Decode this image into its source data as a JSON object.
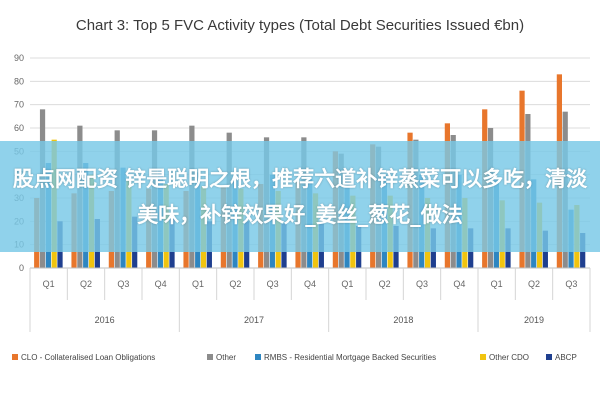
{
  "chart_data": {
    "type": "bar",
    "title": "Chart 3: Top 5 FVC Activity types (Total Debt Securities Issued €bn)",
    "ylim": [
      0,
      90
    ],
    "y_ticks": [
      "0",
      "10",
      "20",
      "30",
      "40",
      "50",
      "60",
      "70",
      "80",
      "90"
    ],
    "categories": [
      "Q1",
      "Q2",
      "Q3",
      "Q4",
      "Q1",
      "Q2",
      "Q3",
      "Q4",
      "Q1",
      "Q2",
      "Q3",
      "Q4",
      "Q1",
      "Q2",
      "Q3"
    ],
    "groups": [
      {
        "label": "2016",
        "span": 4
      },
      {
        "label": "2017",
        "span": 4
      },
      {
        "label": "2018",
        "span": 4
      },
      {
        "label": "2019",
        "span": 3
      }
    ],
    "grid": true,
    "legend_position": "bottom",
    "series": [
      {
        "name": "CLO - Collateralised Loan Obligations",
        "color": "#e8762c",
        "values": [
          30,
          32,
          33,
          34,
          33,
          35,
          36,
          37,
          50,
          53,
          58,
          62,
          68,
          76,
          83
        ]
      },
      {
        "name": "Other",
        "color": "#8c8c8c",
        "values": [
          68,
          61,
          59,
          59,
          61,
          58,
          56,
          56,
          49,
          52,
          55,
          57,
          60,
          66,
          67
        ]
      },
      {
        "name": "RMBS - Residential Mortgage Backed Securities",
        "color": "#2e86c1",
        "values": [
          45,
          45,
          43,
          42,
          41,
          40,
          40,
          39,
          41,
          40,
          40,
          40,
          39,
          38,
          25
        ]
      },
      {
        "name": "Other CDO",
        "color": "#f1c40f",
        "values": [
          55,
          40,
          38,
          36,
          35,
          34,
          33,
          32,
          31,
          31,
          30,
          30,
          29,
          28,
          27
        ]
      },
      {
        "name": "ABCP",
        "color": "#1f3f8f",
        "values": [
          20,
          21,
          22,
          21,
          20,
          20,
          19,
          19,
          18,
          18,
          17,
          17,
          17,
          16,
          15
        ]
      }
    ]
  },
  "overlay": {
    "text": "股点网配资 锌是聪明之根，推荐六道补锌蒸菜可以多吃，清淡美味，补锌效果好_姜丝_葱花_做法"
  }
}
